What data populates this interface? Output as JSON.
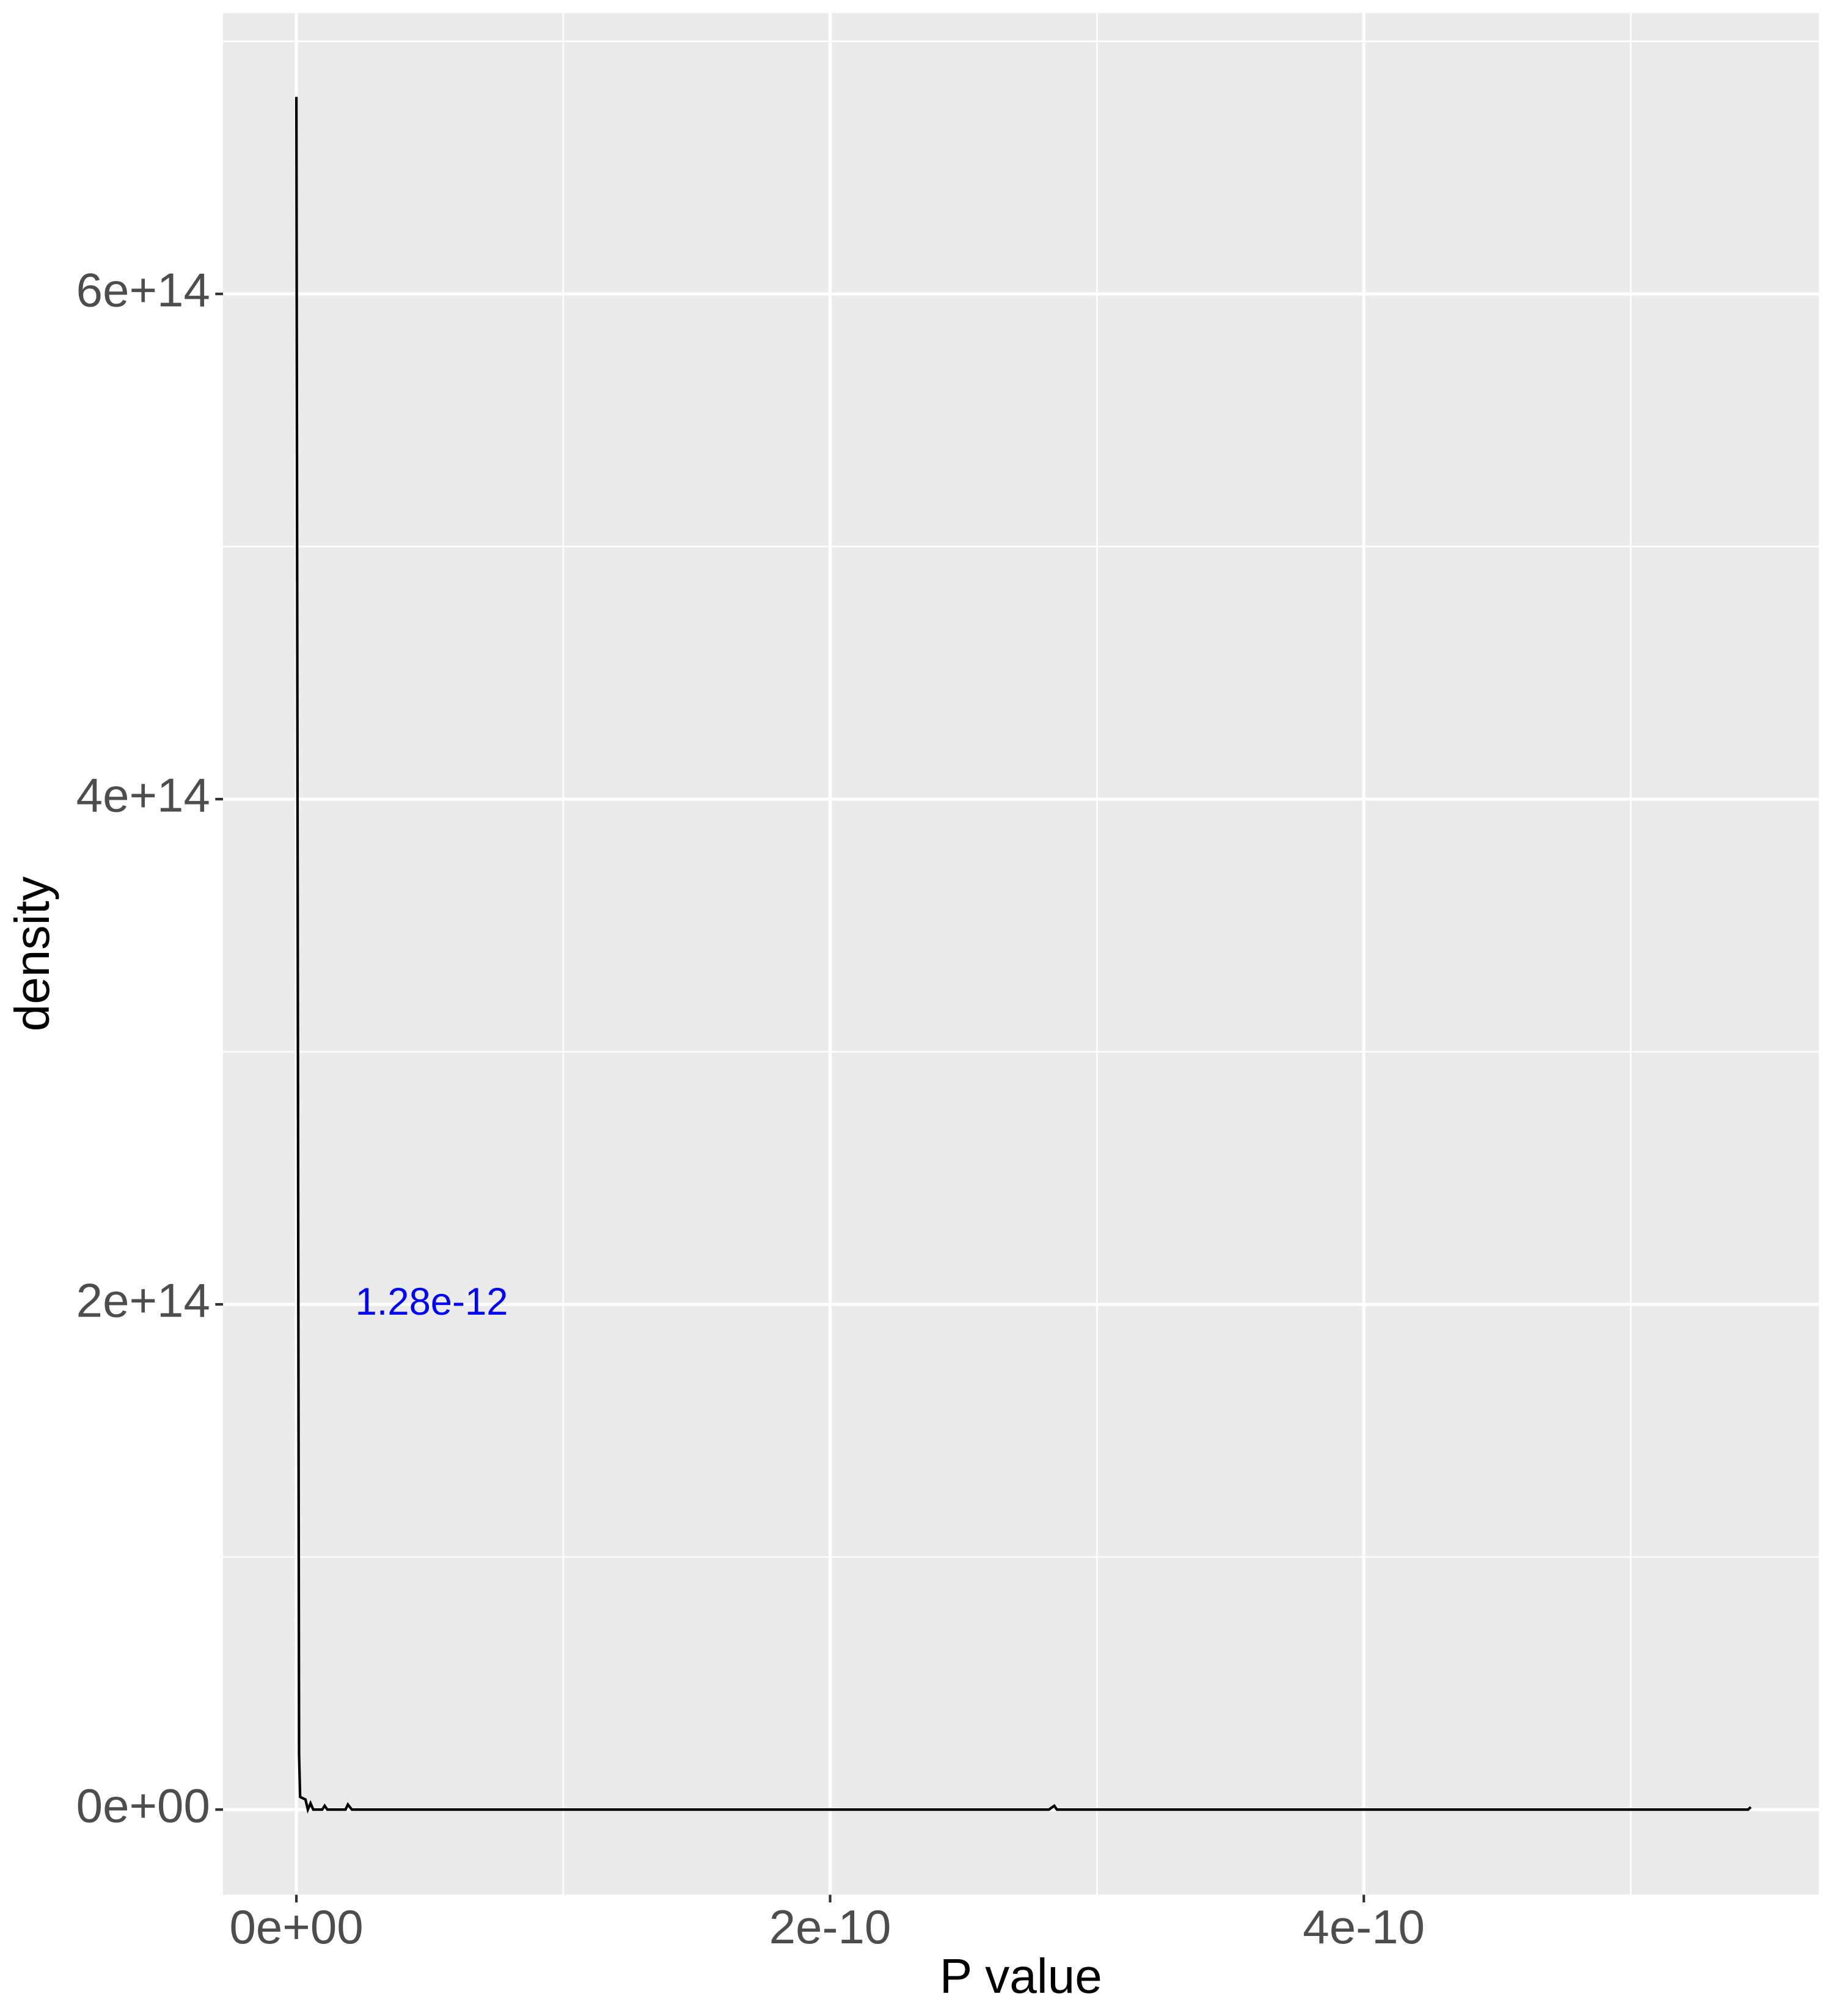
{
  "chart_data": {
    "type": "line",
    "x_label": "P value",
    "y_label": "density",
    "x": [
      0,
      1e-12,
      1.4e-12,
      3.4e-12,
      4.3e-12,
      5.3e-12,
      6.3e-12,
      9.7e-12,
      1.06e-11,
      1.16e-11,
      1.84e-11,
      1.93e-11,
      2.08e-11,
      2.82e-10,
      2.84e-10,
      2.85e-10,
      5.44e-10,
      5.45e-10
    ],
    "values": [
      678000000000000.0,
      22000000000000.0,
      5000000000000.0,
      4000000000000.0,
      0,
      2500000000000.0,
      0,
      0,
      1500000000000.0,
      0,
      0,
      2000000000000.0,
      0,
      0,
      1500000000000.0,
      0,
      0,
      1000000000000.0
    ],
    "color": "#000000",
    "xlim": [
      -2.75e-11,
      5.705e-10
    ],
    "ylim": [
      -33700000000000.0,
      711200000000000.0
    ],
    "xticks": [
      {
        "value": 0,
        "label": "0e+00"
      },
      {
        "value": 2e-10,
        "label": "2e-10"
      },
      {
        "value": 4e-10,
        "label": "4e-10"
      }
    ],
    "yticks": [
      {
        "value": 0,
        "label": "0e+00"
      },
      {
        "value": 200000000000000.0,
        "label": "2e+14"
      },
      {
        "value": 400000000000000.0,
        "label": "4e+14"
      },
      {
        "value": 600000000000000.0,
        "label": "6e+14"
      }
    ],
    "x_minor_breaks": [
      1e-10,
      3e-10,
      5e-10
    ],
    "y_minor_breaks": [
      100000000000000.0,
      300000000000000.0,
      500000000000000.0,
      700000000000000.0
    ],
    "grid": true,
    "annotation": {
      "text": "1.28e-12",
      "x": 5.07e-11,
      "y": 200000000000000.0,
      "color": "#0000ff"
    }
  }
}
